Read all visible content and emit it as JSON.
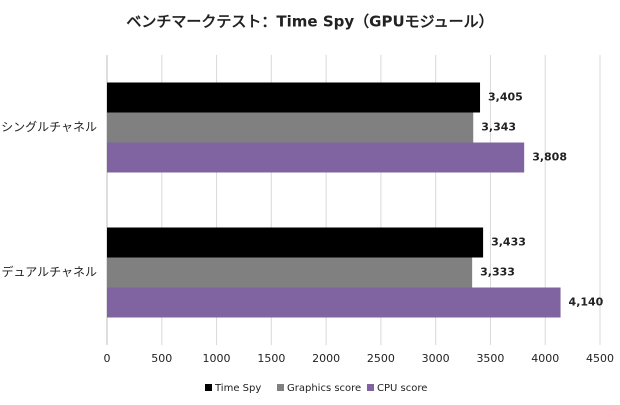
{
  "chart_data": {
    "type": "bar",
    "orientation": "horizontal",
    "title": "ベンチマークテスト：Time Spy（GPUモジュール）",
    "categories": [
      "シングルチャネル",
      "デュアルチャネル"
    ],
    "series": [
      {
        "name": "Time Spy",
        "color": "#000000",
        "values": [
          3405,
          3433
        ],
        "value_labels": [
          "3,405",
          "3,433"
        ]
      },
      {
        "name": "Graphics score",
        "color": "#808080",
        "values": [
          3343,
          3333
        ],
        "value_labels": [
          "3,343",
          "3,333"
        ]
      },
      {
        "name": "CPU score",
        "color": "#8064a2",
        "values": [
          3808,
          4140
        ],
        "value_labels": [
          "3,808",
          "4,140"
        ]
      }
    ],
    "xlim": [
      0,
      4500
    ],
    "xticks": [
      0,
      500,
      1000,
      1500,
      2000,
      2500,
      3000,
      3500,
      4000,
      4500
    ],
    "grid": true,
    "legend": "bottom"
  }
}
